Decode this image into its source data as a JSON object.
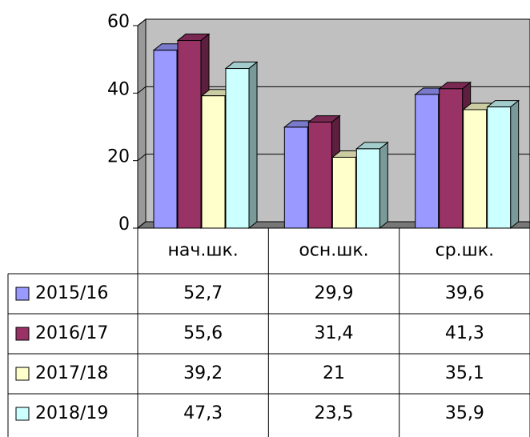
{
  "chart_data": {
    "type": "bar3d",
    "categories": [
      "нач.шк.",
      "осн.шк.",
      "ср.шк."
    ],
    "series": [
      {
        "name": "2015/16",
        "color": "#9999ff",
        "values": [
          52.7,
          29.9,
          39.6
        ],
        "value_labels": [
          "52,7",
          "29,9",
          "39,6"
        ]
      },
      {
        "name": "2016/17",
        "color": "#993366",
        "values": [
          55.6,
          31.4,
          41.3
        ],
        "value_labels": [
          "55,6",
          "31,4",
          "41,3"
        ]
      },
      {
        "name": "2017/18",
        "color": "#ffffcc",
        "values": [
          39.2,
          21,
          35.1
        ],
        "value_labels": [
          "39,2",
          "21",
          "35,1"
        ]
      },
      {
        "name": "2018/19",
        "color": "#ccffff",
        "values": [
          47.3,
          23.5,
          35.9
        ],
        "value_labels": [
          "47,3",
          "23,5",
          "35,9"
        ]
      }
    ],
    "ylim": [
      0,
      60
    ],
    "yticks": [
      0,
      20,
      40,
      60
    ],
    "grid": true,
    "wall_color": "#c0c0c0"
  }
}
